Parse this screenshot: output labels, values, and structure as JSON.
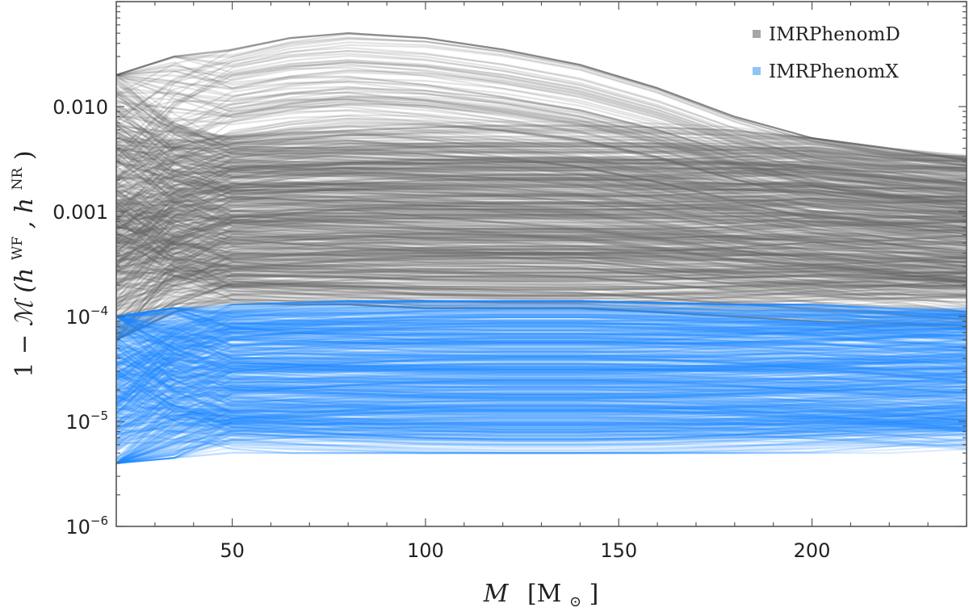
{
  "chart_data": {
    "type": "line",
    "xscale": "linear",
    "yscale": "log",
    "xlim": [
      20,
      240
    ],
    "ylim": [
      1e-06,
      0.1
    ],
    "grid": false,
    "legend_position": "top-right",
    "x_ticks": [
      {
        "value": 50,
        "label": "50"
      },
      {
        "value": 100,
        "label": "100"
      },
      {
        "value": 150,
        "label": "150"
      },
      {
        "value": 200,
        "label": "200"
      }
    ],
    "y_ticks": [
      {
        "value": 0.01,
        "label": "0.010",
        "base": "",
        "exp": ""
      },
      {
        "value": 0.001,
        "label": "0.001",
        "base": "",
        "exp": ""
      },
      {
        "value": 0.0001,
        "label": "",
        "base": "10",
        "exp": "−4"
      },
      {
        "value": 1e-05,
        "label": "",
        "base": "10",
        "exp": "−5"
      },
      {
        "value": 1e-06,
        "label": "",
        "base": "10",
        "exp": "−6"
      }
    ],
    "xlabel": {
      "var": "M",
      "unit": "[M",
      "unit_sub": "⊙",
      "unit_close": "]"
    },
    "ylabel": {
      "prefix": "1 − ",
      "script": "ℳ",
      "open": "(h",
      "sup1": "WF",
      "mid": ", h",
      "sup2": "NR",
      "close": ")"
    },
    "x": [
      20,
      35,
      50,
      65,
      80,
      100,
      120,
      140,
      160,
      180,
      200,
      220,
      240
    ],
    "series": [
      {
        "name": "IMRPhenomD",
        "color": "#666666",
        "legend_color": "#a6a6a6",
        "curve_count": 600,
        "envelope_low": [
          6e-05,
          0.00011,
          0.00013,
          0.00013,
          0.00013,
          0.00012,
          0.00012,
          0.00012,
          0.00011,
          0.0001,
          9e-05,
          8e-05,
          7e-05
        ],
        "envelope_high": [
          0.02,
          0.03,
          0.035,
          0.045,
          0.05,
          0.045,
          0.035,
          0.025,
          0.015,
          0.008,
          0.005,
          0.004,
          0.0035
        ],
        "dense_band": [
          0.00015,
          0.005
        ]
      },
      {
        "name": "IMRPhenomX",
        "color": "#1e88ff",
        "legend_color": "#8fc4f7",
        "curve_count": 600,
        "envelope_low": [
          4e-06,
          4.5e-06,
          5e-06,
          5e-06,
          5e-06,
          5e-06,
          5e-06,
          5e-06,
          5e-06,
          5e-06,
          5e-06,
          5e-06,
          5e-06
        ],
        "envelope_high": [
          0.0001,
          0.00012,
          0.00013,
          0.000135,
          0.00014,
          0.00014,
          0.00014,
          0.00014,
          0.000135,
          0.00013,
          0.00013,
          0.00012,
          0.00012
        ],
        "dense_band": [
          8e-06,
          0.00012
        ]
      }
    ]
  }
}
